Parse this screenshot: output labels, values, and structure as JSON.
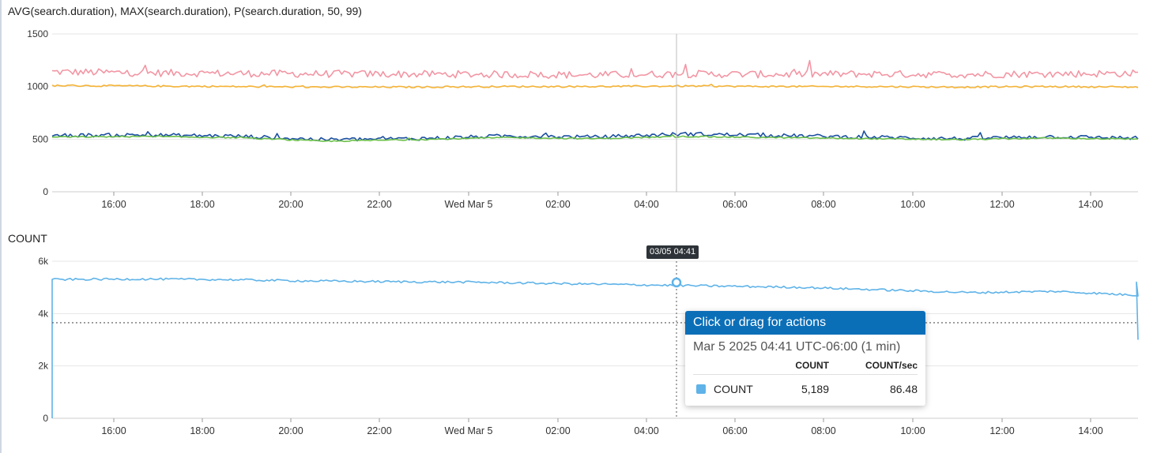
{
  "chart_data": [
    {
      "type": "line",
      "title": "AVG(search.duration), MAX(search.duration), P(search.duration, 50, 99)",
      "x_tick_labels": [
        "16:00",
        "18:00",
        "20:00",
        "22:00",
        "Wed Mar 5",
        "02:00",
        "04:00",
        "06:00",
        "08:00",
        "10:00",
        "12:00",
        "14:00"
      ],
      "y_tick_labels": [
        "0",
        "500",
        "1000",
        "1500"
      ],
      "ylim": [
        0,
        1500
      ],
      "grid": true,
      "cursor_time": "04:41",
      "series": [
        {
          "color": "#f296a4",
          "approx_level": 1120,
          "noise": 35,
          "values": [
            1140,
            1130,
            1125,
            1120,
            1118,
            1115,
            1110,
            1120,
            1115,
            1120,
            1115,
            1120,
            1125
          ]
        },
        {
          "color": "#f5b335",
          "approx_level": 1000,
          "noise": 8,
          "values": [
            1010,
            1005,
            1000,
            995,
            995,
            1000,
            1000,
            1005,
            1000,
            1000,
            995,
            1000,
            995
          ]
        },
        {
          "color": "#1a4fa0",
          "approx_level": 520,
          "noise": 18,
          "values": [
            535,
            540,
            530,
            495,
            505,
            530,
            520,
            550,
            535,
            520,
            505,
            525,
            510
          ]
        },
        {
          "color": "#6cc04a",
          "approx_level": 510,
          "noise": 6,
          "values": [
            520,
            525,
            515,
            480,
            495,
            515,
            505,
            525,
            515,
            505,
            495,
            510,
            500
          ]
        }
      ]
    },
    {
      "type": "line",
      "title": "COUNT",
      "x_tick_labels": [
        "16:00",
        "18:00",
        "20:00",
        "22:00",
        "Wed Mar 5",
        "02:00",
        "04:00",
        "06:00",
        "08:00",
        "10:00",
        "12:00",
        "14:00"
      ],
      "y_tick_labels": [
        "0",
        "2k",
        "4k",
        "6k"
      ],
      "ylim": [
        0,
        6000
      ],
      "grid": true,
      "cursor_time": "04:41",
      "reference_line": 3650,
      "series": [
        {
          "name": "COUNT",
          "color": "#5fb3e8",
          "values": [
            5300,
            5320,
            5300,
            5250,
            5220,
            5200,
            5150,
            5100,
            5050,
            5000,
            4900,
            4800,
            4850,
            4700
          ]
        }
      ],
      "hover": {
        "timestamp": "03/05 04:41",
        "value": 5189
      }
    }
  ],
  "tooltip": {
    "header": "Click or drag for actions",
    "subtitle": "Mar 5 2025 04:41 UTC-06:00 (1 min)",
    "columns": [
      "COUNT",
      "COUNT/sec"
    ],
    "row_label": "COUNT",
    "row_count": "5,189",
    "row_rate": "86.48",
    "swatch_color": "#5fb3e8"
  }
}
